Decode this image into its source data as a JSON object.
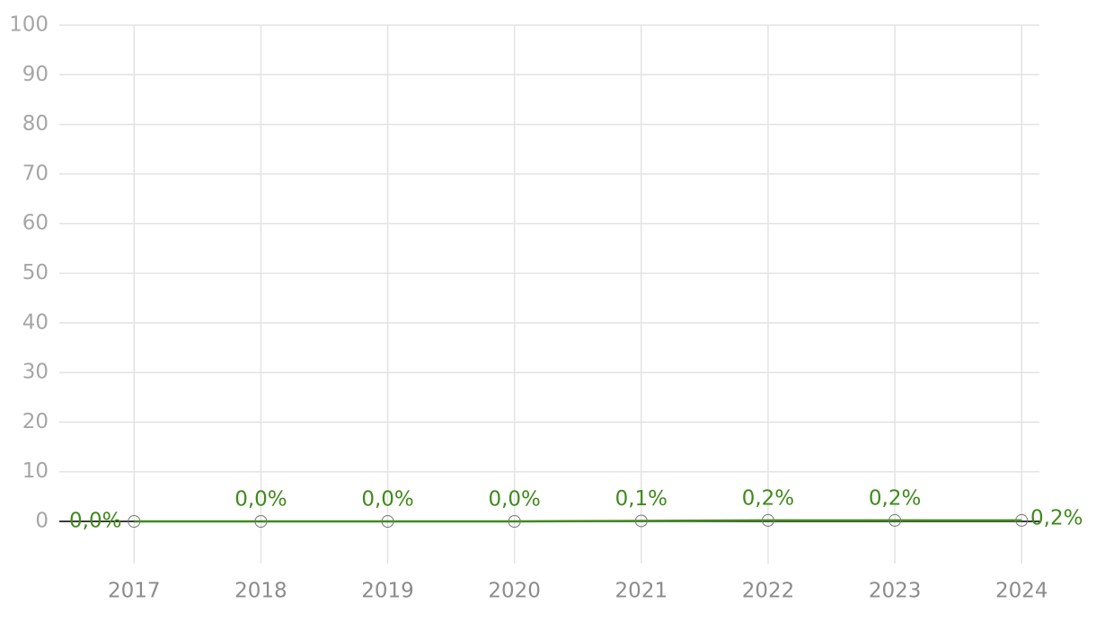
{
  "chart_data": {
    "type": "line",
    "x": [
      2017,
      2018,
      2019,
      2020,
      2021,
      2022,
      2023,
      2024
    ],
    "xlim": [
      2016.41,
      2024.14
    ],
    "xticks": [
      2017,
      2018,
      2019,
      2020,
      2021,
      2022,
      2023,
      2024
    ],
    "ylim": [
      -8.5,
      100
    ],
    "yticks": [
      0,
      10,
      20,
      30,
      40,
      50,
      60,
      70,
      80,
      90,
      100
    ],
    "grid": true,
    "series": [
      {
        "color": "#3f8a1b",
        "values": [
          0.0,
          0.0,
          0.0,
          0.0,
          0.1,
          0.2,
          0.2,
          0.2
        ],
        "value_labels": [
          "0,0%",
          "0,0%",
          "0,0%",
          "0,0%",
          "0,1%",
          "0,2%",
          "0,2%",
          "0,2%"
        ]
      }
    ]
  }
}
